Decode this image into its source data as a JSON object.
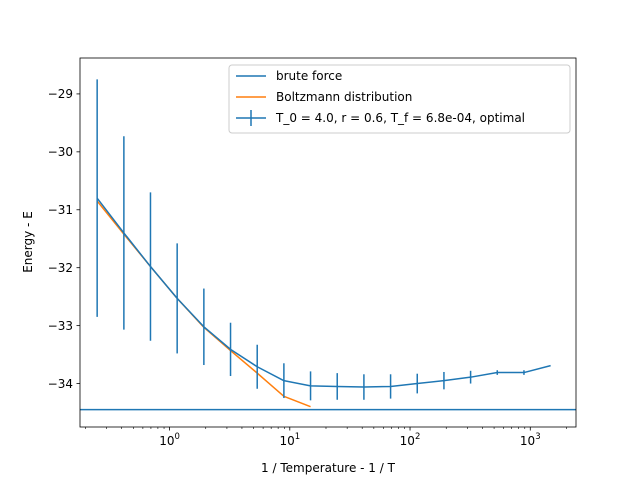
{
  "chart_data": {
    "type": "line",
    "xlabel": "1 / Temperature - 1 / T",
    "ylabel": "Energy - E",
    "xscale": "log",
    "xlim": [
      0.18,
      2400
    ],
    "ylim": [
      -34.75,
      -28.38
    ],
    "grid": false,
    "legend_position": "top-right",
    "x_ticks": [
      {
        "value": 1,
        "base": "10",
        "exp": "0"
      },
      {
        "value": 10,
        "base": "10",
        "exp": "1"
      },
      {
        "value": 100,
        "base": "10",
        "exp": "2"
      },
      {
        "value": 1000,
        "base": "10",
        "exp": "3"
      }
    ],
    "y_ticks": [
      {
        "value": -29,
        "label": "−29"
      },
      {
        "value": -30,
        "label": "−30"
      },
      {
        "value": -31,
        "label": "−31"
      },
      {
        "value": -32,
        "label": "−32"
      },
      {
        "value": -33,
        "label": "−33"
      },
      {
        "value": -34,
        "label": "−34"
      }
    ],
    "series": [
      {
        "name": "brute force",
        "kind": "hline",
        "color": "#1f77b4",
        "y": -34.45
      },
      {
        "name": "Boltzmann distribution",
        "kind": "line",
        "color": "#ff7f0e",
        "x": [
          0.25,
          0.417,
          0.694,
          1.157,
          1.929,
          3.215,
          5.358,
          8.93,
          14.88
        ],
        "y": [
          -30.85,
          -31.42,
          -31.98,
          -32.53,
          -33.03,
          -33.43,
          -33.82,
          -34.22,
          -34.4
        ]
      },
      {
        "name": "T_0 = 4.0, r = 0.6, T_f = 6.8e-04, optimal",
        "kind": "errorbar",
        "color": "#1f77b4",
        "x": [
          0.25,
          0.417,
          0.694,
          1.157,
          1.929,
          3.215,
          5.358,
          8.93,
          14.88,
          24.8,
          41.34,
          68.9,
          114.8,
          191.4,
          318.9,
          531.5,
          885.9,
          1476.5
        ],
        "y": [
          -30.8,
          -31.4,
          -31.98,
          -32.53,
          -33.02,
          -33.41,
          -33.71,
          -33.95,
          -34.04,
          -34.05,
          -34.06,
          -34.05,
          -34.0,
          -33.95,
          -33.89,
          -33.81,
          -33.81,
          -33.69
        ],
        "yerr": [
          2.05,
          1.67,
          1.28,
          0.95,
          0.66,
          0.46,
          0.38,
          0.3,
          0.25,
          0.23,
          0.22,
          0.21,
          0.17,
          0.15,
          0.11,
          0.04,
          0.04,
          null
        ]
      }
    ]
  }
}
